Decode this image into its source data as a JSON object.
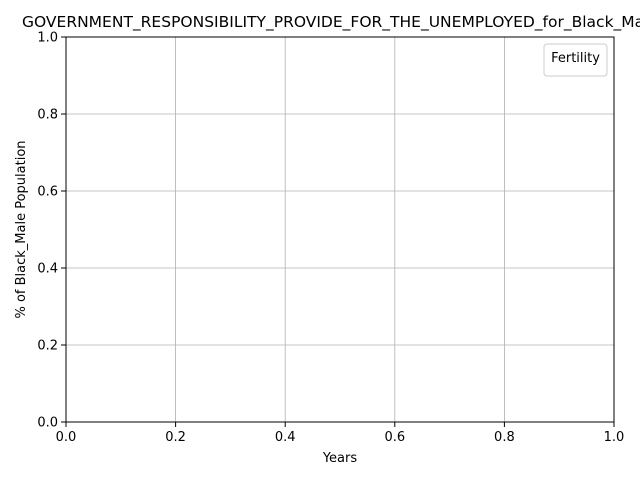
{
  "chart_data": {
    "type": "line",
    "title": "GOVERNMENT_RESPONSIBILITY_PROVIDE_FOR_THE_UNEMPLOYED_for_Black_Male",
    "xlabel": "Years",
    "ylabel": "% of Black_Male Population",
    "xlim": [
      0.0,
      1.0
    ],
    "ylim": [
      0.0,
      1.0
    ],
    "x_ticks": [
      "0.0",
      "0.2",
      "0.4",
      "0.6",
      "0.8",
      "1.0"
    ],
    "y_ticks": [
      "0.0",
      "0.2",
      "0.4",
      "0.6",
      "0.8",
      "1.0"
    ],
    "grid": true,
    "legend": {
      "title": "Fertility",
      "placement": "top-right",
      "entries": []
    },
    "series": []
  }
}
